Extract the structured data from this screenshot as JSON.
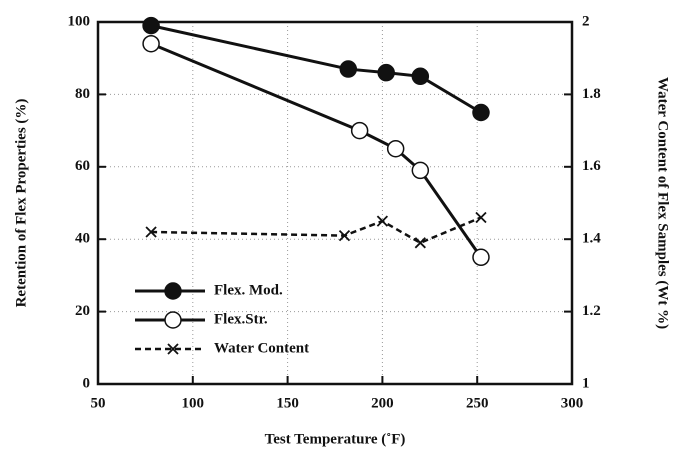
{
  "chart_data": {
    "type": "line",
    "xlabel": "Test Temperature (˚F)",
    "ylabel": "Retention of Flex Properties (%)",
    "y2label": "Water Content of Flex Samples (Wt %)",
    "xlim": [
      50,
      300
    ],
    "xticks": [
      50,
      100,
      150,
      200,
      250,
      300
    ],
    "ylim": [
      0,
      100
    ],
    "yticks": [
      0,
      20,
      40,
      60,
      80,
      100
    ],
    "y2lim": [
      1,
      2
    ],
    "y2ticks": [
      1,
      1.2,
      1.4,
      1.6,
      1.8,
      2
    ],
    "grid": true,
    "legend": "lower left",
    "series": [
      {
        "name": "Flex. Mod.",
        "color": "#111111",
        "marker": "filled-circle",
        "dash": false,
        "x": [
          78,
          182,
          202,
          220,
          252
        ],
        "values": [
          99,
          87,
          86,
          85,
          75
        ]
      },
      {
        "name": "Flex.Str.",
        "color": "#111111",
        "marker": "open-circle",
        "dash": false,
        "x": [
          78,
          188,
          207,
          220,
          252
        ],
        "values": [
          94,
          70,
          65,
          59,
          35
        ]
      },
      {
        "name": "Water Content",
        "color": "#111111",
        "marker": "x",
        "dash": true,
        "axis": "y2",
        "x": [
          78,
          180,
          200,
          220,
          252
        ],
        "values": [
          1.42,
          1.41,
          1.45,
          1.39,
          1.46
        ]
      }
    ]
  }
}
